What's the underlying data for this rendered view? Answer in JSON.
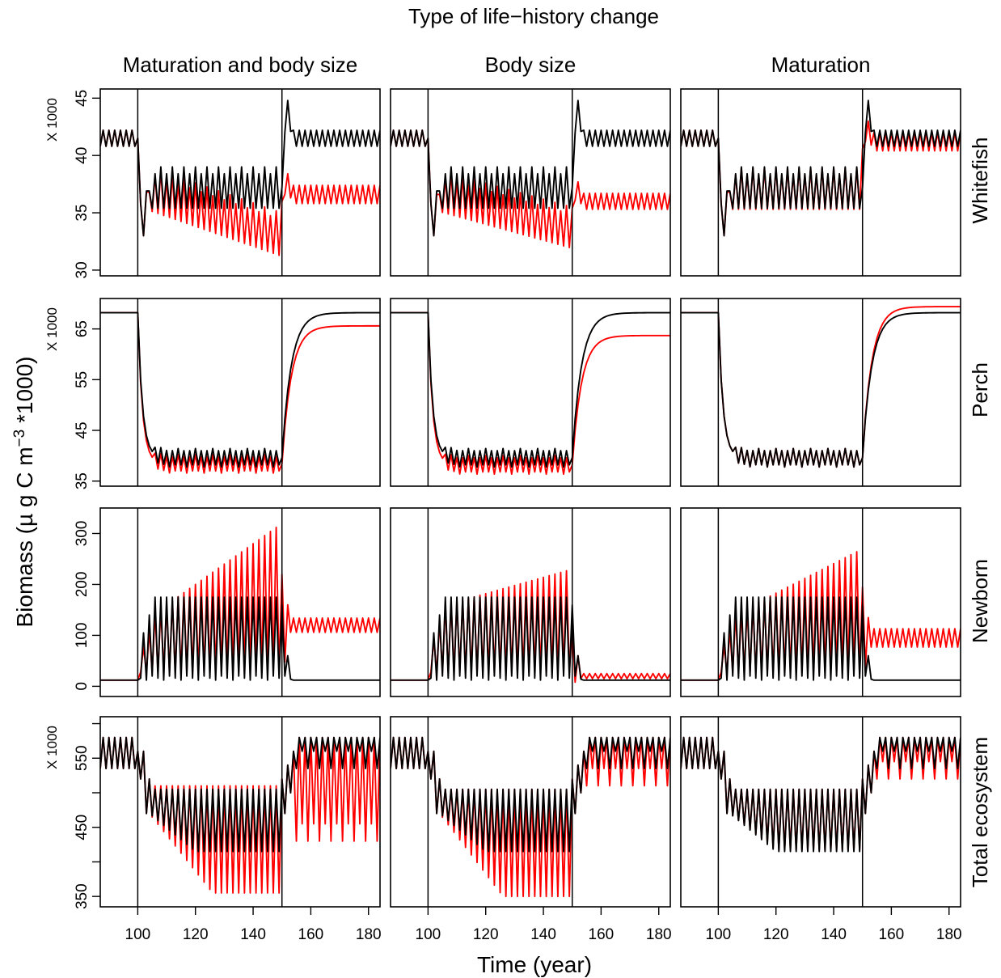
{
  "figure": {
    "title": "Type of life−history change",
    "xlabel": "Time (year)",
    "ylabel_parts": {
      "main": "Biomass (µ g C m",
      "exp": "−3",
      "tail": " *1000)"
    },
    "multiplier_label": "X 1000",
    "column_titles": [
      "Maturation and body size",
      "Body size",
      "Maturation"
    ],
    "row_titles": [
      "Whitefish",
      "Perch",
      "Newborn",
      "Total ecosystem"
    ],
    "colors": {
      "treatment": "#ff0000",
      "reference": "#000000",
      "axes": "#000000"
    }
  },
  "chart_data": {
    "type": "line",
    "layout": "grid 4 rows x 3 columns, shared x axis",
    "x": {
      "label": "Time (year)",
      "range": [
        87,
        184
      ],
      "ticks": [
        100,
        120,
        140,
        160,
        180
      ]
    },
    "vertical_lines_x": [
      100,
      150
    ],
    "series_colors": [
      "red",
      "black"
    ],
    "rows": [
      {
        "name": "Whitefish",
        "multiplier": "X 1000",
        "y_range": [
          29.5,
          45.8
        ],
        "y_ticks": [
          30,
          35,
          40,
          45
        ],
        "base_pre": [
          42.2,
          40.8
        ],
        "panels": [
          {
            "column": "Maturation and body size",
            "red": {
              "mid_start": 36.8,
              "mid_end": 32.8,
              "amp_mid": 1.6,
              "post_level": 36.6,
              "post_amp": 0.8
            },
            "black": {
              "mid_level": 36.9,
              "amp_mid": 1.5,
              "post_level": 41.5,
              "post_amp": 0.7
            }
          },
          {
            "column": "Body size",
            "red": {
              "mid_start": 36.6,
              "mid_end": 33.4,
              "amp_mid": 1.5,
              "post_level": 36.0,
              "post_amp": 0.7
            },
            "black": {
              "mid_level": 36.9,
              "amp_mid": 1.5,
              "post_level": 41.5,
              "post_amp": 0.7
            }
          },
          {
            "column": "Maturation",
            "red": {
              "mid_level": 36.8,
              "amp_mid": 1.5,
              "post_level": 41.2,
              "post_amp": 0.8
            },
            "black": {
              "mid_level": 36.9,
              "amp_mid": 1.5,
              "post_level": 41.5,
              "post_amp": 0.7
            }
          }
        ]
      },
      {
        "name": "Perch",
        "multiplier": "X 1000",
        "y_range": [
          34,
          71
        ],
        "y_ticks": [
          35,
          45,
          55,
          65
        ],
        "pre_level": 68.2,
        "panels": [
          {
            "column": "Maturation and body size",
            "red": {
              "mid_level": 38.4,
              "amp_mid": 1.4,
              "post_level": 65.6
            },
            "black": {
              "mid_level": 39.6,
              "amp_mid": 1.4,
              "post_level": 68.2
            }
          },
          {
            "column": "Body size",
            "red": {
              "mid_level": 38.2,
              "amp_mid": 1.4,
              "post_level": 63.7
            },
            "black": {
              "mid_level": 39.6,
              "amp_mid": 1.4,
              "post_level": 68.2
            }
          },
          {
            "column": "Maturation",
            "red": {
              "mid_level": 39.6,
              "amp_mid": 1.4,
              "post_level": 69.4
            },
            "black": {
              "mid_level": 39.6,
              "amp_mid": 1.4,
              "post_level": 68.2
            }
          }
        ]
      },
      {
        "name": "Newborn",
        "multiplier": "",
        "y_range": [
          -20,
          350
        ],
        "y_ticks": [
          0,
          100,
          200,
          300
        ],
        "pre_level": 12,
        "panels": [
          {
            "column": "Maturation and body size",
            "red": {
              "peak_start": 120,
              "peak_end": 320,
              "trough": 10,
              "post_level": 120,
              "post_amp": 14
            },
            "black": {
              "peak": 175,
              "trough": 12,
              "post_level": 12
            }
          },
          {
            "column": "Body size",
            "red": {
              "peak_start": 150,
              "peak_end": 230,
              "trough": 10,
              "post_level": 20,
              "post_amp": 5
            },
            "black": {
              "peak": 175,
              "trough": 12,
              "post_level": 12
            }
          },
          {
            "column": "Maturation",
            "red": {
              "peak_start": 125,
              "peak_end": 270,
              "trough": 10,
              "post_level": 95,
              "post_amp": 18
            },
            "black": {
              "peak": 175,
              "trough": 12,
              "post_level": 12
            }
          }
        ]
      },
      {
        "name": "Total ecosystem",
        "multiplier": "X 1000",
        "y_range": [
          335,
          610
        ],
        "y_ticks": [
          350,
          450,
          550
        ],
        "y_minor_ticks": [
          400,
          500,
          600
        ],
        "pre_range": [
          535,
          580
        ],
        "panels": [
          {
            "column": "Maturation and body size",
            "red": {
              "mid_top": 510,
              "mid_bottom_end": 355,
              "post_top": 580,
              "post_bottom": 430
            },
            "black": {
              "mid_top": 505,
              "mid_bottom": 415,
              "post_top": 580,
              "post_bottom": 535
            }
          },
          {
            "column": "Body size",
            "red": {
              "mid_top": 505,
              "mid_bottom_end": 350,
              "post_top": 580,
              "post_bottom": 510
            },
            "black": {
              "mid_top": 505,
              "mid_bottom": 415,
              "post_top": 580,
              "post_bottom": 535
            }
          },
          {
            "column": "Maturation",
            "red": {
              "mid_top": 505,
              "mid_bottom": 418,
              "post_top": 580,
              "post_bottom": 520
            },
            "black": {
              "mid_top": 505,
              "mid_bottom": 415,
              "post_top": 580,
              "post_bottom": 535
            }
          }
        ]
      }
    ]
  }
}
